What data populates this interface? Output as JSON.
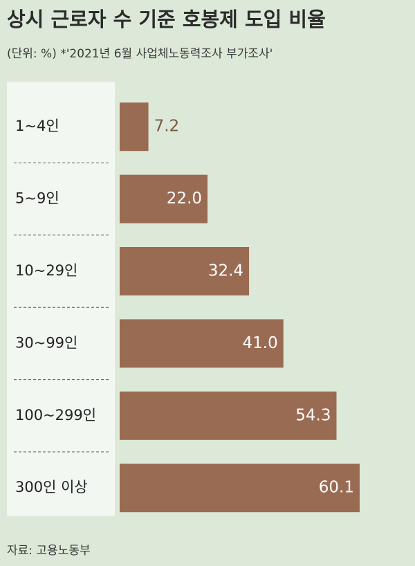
{
  "chart_data": {
    "type": "bar",
    "orientation": "horizontal",
    "title": "상시 근로자 수 기준 호봉제 도입 비율",
    "subtitle": "(단위: %) *'2021년 6월 사업체노동력조사 부가조사'",
    "categories": [
      "1~4인",
      "5~9인",
      "10~29인",
      "30~99인",
      "100~299인",
      "300인 이상"
    ],
    "values": [
      7.2,
      22.0,
      32.4,
      41.0,
      54.3,
      60.1
    ],
    "value_labels": [
      "7.2",
      "22.0",
      "32.4",
      "41.0",
      "54.3",
      "60.1"
    ],
    "color": "#9a6b53",
    "source": "자료: 고용노동부"
  }
}
